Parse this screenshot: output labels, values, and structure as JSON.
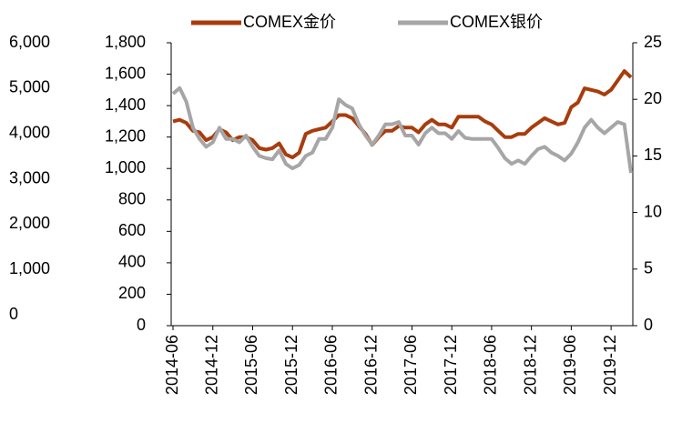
{
  "chart_data": {
    "type": "line",
    "categories": [
      "2014-06",
      null,
      null,
      null,
      null,
      null,
      "2014-12",
      null,
      null,
      null,
      null,
      null,
      "2015-06",
      null,
      null,
      null,
      null,
      null,
      "2015-12",
      null,
      null,
      null,
      null,
      null,
      "2016-06",
      null,
      null,
      null,
      null,
      null,
      "2016-12",
      null,
      null,
      null,
      null,
      null,
      "2017-06",
      null,
      null,
      null,
      null,
      null,
      "2017-12",
      null,
      null,
      null,
      null,
      null,
      "2018-06",
      null,
      null,
      null,
      null,
      null,
      "2018-12",
      null,
      null,
      null,
      null,
      null,
      "2019-06",
      null,
      null,
      null,
      null,
      null,
      "2019-12",
      null,
      null,
      null
    ],
    "series": [
      {
        "name": "COMEX金价",
        "color": "#a83c0c",
        "values": [
          1300,
          1310,
          1290,
          1240,
          1230,
          1180,
          1200,
          1250,
          1230,
          1180,
          1200,
          1200,
          1180,
          1130,
          1120,
          1130,
          1160,
          1090,
          1070,
          1100,
          1220,
          1240,
          1250,
          1260,
          1300,
          1340,
          1340,
          1320,
          1270,
          1220,
          1150,
          1200,
          1240,
          1240,
          1270,
          1260,
          1260,
          1230,
          1280,
          1310,
          1280,
          1280,
          1260,
          1330,
          1330,
          1330,
          1330,
          1300,
          1280,
          1240,
          1200,
          1200,
          1220,
          1220,
          1260,
          1290,
          1320,
          1300,
          1280,
          1290,
          1390,
          1420,
          1510,
          1500,
          1490,
          1470,
          1500,
          1560,
          1620,
          1580
        ]
      },
      {
        "name": "COMEX银价",
        "color": "#a6a6a6",
        "axis": "y2",
        "values": [
          20.5,
          21,
          19.8,
          17.5,
          16.5,
          15.8,
          16.2,
          17.5,
          16.5,
          16.5,
          16.2,
          16.8,
          15.8,
          15,
          14.8,
          14.7,
          15.5,
          14.3,
          13.9,
          14.2,
          15,
          15.3,
          16.5,
          16.5,
          17.5,
          20,
          19.5,
          19.2,
          17.8,
          16.8,
          16,
          16.8,
          17.8,
          17.8,
          18,
          16.8,
          16.8,
          16,
          17,
          17.5,
          17,
          17,
          16.5,
          17.2,
          16.6,
          16.5,
          16.5,
          16.5,
          16.5,
          15.7,
          14.8,
          14.3,
          14.6,
          14.3,
          15,
          15.6,
          15.8,
          15.3,
          15,
          14.6,
          15.2,
          16.2,
          17.5,
          18.2,
          17.5,
          17,
          17.5,
          18,
          17.8,
          13.5
        ]
      }
    ],
    "ylim": [
      0,
      1800
    ],
    "yticks": [
      0,
      200,
      400,
      600,
      800,
      {
        "value": 1000,
        "label": "1,000"
      },
      {
        "value": 1200,
        "label": "1,200"
      },
      {
        "value": 1400,
        "label": "1,400"
      },
      {
        "value": 1600,
        "label": "1,600"
      },
      {
        "value": 1800,
        "label": "1,800"
      }
    ],
    "y2lim": [
      0,
      25
    ],
    "y2ticks": [
      0,
      5,
      10,
      15,
      20,
      25
    ],
    "y3lim": [
      0,
      6000
    ],
    "y3ticks": [
      0,
      {
        "value": 1000,
        "label": "1,000"
      },
      {
        "value": 2000,
        "label": "2,000"
      },
      {
        "value": 3000,
        "label": "3,000"
      },
      {
        "value": 4000,
        "label": "4,000"
      },
      {
        "value": 5000,
        "label": "5,000"
      },
      {
        "value": 6000,
        "label": "6,000"
      }
    ],
    "legend": "top"
  }
}
